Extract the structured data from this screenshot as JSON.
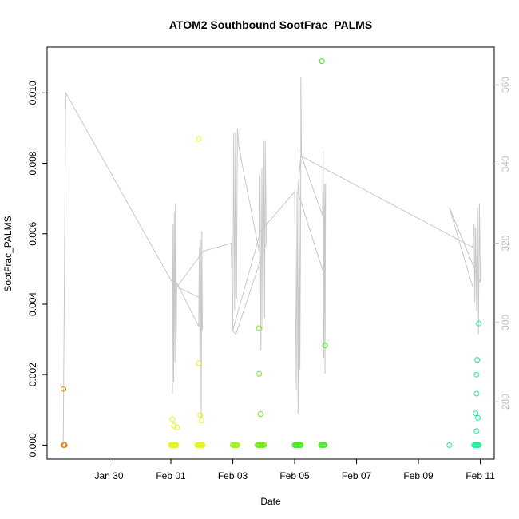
{
  "chart_data": {
    "type": "scatter",
    "title": "ATOM2 Southbound SootFrac_PALMS",
    "xlabel": "Date",
    "ylabel": "SootFrac_PALMS",
    "x_ticks": [
      "Jan 30",
      "Feb 01",
      "Feb 03",
      "Feb 05",
      "Feb 07",
      "Feb 09",
      "Feb 11"
    ],
    "x_tick_days": [
      30,
      32,
      34,
      36,
      38,
      40,
      42
    ],
    "xlim_days": [
      28.0,
      42.45
    ],
    "y_ticks": [
      "0.000",
      "0.002",
      "0.004",
      "0.006",
      "0.008",
      "0.010"
    ],
    "ylim": [
      -0.0004,
      0.0113
    ],
    "y2_ticks": [
      "280",
      "300",
      "320",
      "340",
      "360"
    ],
    "y2lim": [
      265.5,
      369.5
    ],
    "grid": false,
    "scatter_series": [
      {
        "color": "#E88A0C",
        "points": [
          [
            28.53,
            0.00159
          ],
          [
            28.53,
            0.0
          ],
          [
            28.55,
            0.0
          ],
          [
            28.57,
            0.0
          ]
        ]
      },
      {
        "color": "#E6F01A",
        "points": [
          [
            32.05,
            0.00073
          ],
          [
            32.1,
            0.00055
          ],
          [
            32.2,
            0.0005
          ],
          [
            32.9,
            0.0087
          ],
          [
            32.9,
            0.00232
          ],
          [
            32.95,
            0.00085
          ],
          [
            33.0,
            0.0007
          ],
          [
            32.0,
            0.0
          ],
          [
            32.03,
            0.0
          ],
          [
            32.06,
            0.0
          ],
          [
            32.09,
            0.0
          ],
          [
            32.12,
            0.0
          ],
          [
            32.15,
            0.0
          ],
          [
            32.18,
            0.0
          ],
          [
            32.85,
            0.0
          ],
          [
            32.88,
            0.0
          ],
          [
            32.91,
            0.0
          ],
          [
            32.94,
            0.0
          ],
          [
            32.97,
            0.0
          ],
          [
            33.0,
            0.0
          ],
          [
            33.03,
            0.0
          ]
        ]
      },
      {
        "color": "#9AF01A",
        "points": [
          [
            34.0,
            0.0
          ],
          [
            34.03,
            0.0
          ],
          [
            34.06,
            0.0
          ],
          [
            34.09,
            0.0
          ],
          [
            34.12,
            0.0
          ],
          [
            34.15,
            0.0
          ]
        ]
      },
      {
        "color": "#6EEC1A",
        "points": [
          [
            34.85,
            0.00332
          ],
          [
            34.85,
            0.00202
          ],
          [
            34.9,
            0.00088
          ],
          [
            34.8,
            0.0
          ],
          [
            34.83,
            0.0
          ],
          [
            34.86,
            0.0
          ],
          [
            34.89,
            0.0
          ],
          [
            34.92,
            0.0
          ],
          [
            34.95,
            0.0
          ],
          [
            34.98,
            0.0
          ],
          [
            35.01,
            0.0
          ]
        ]
      },
      {
        "color": "#3EEC1A",
        "points": [
          [
            36.0,
            0.0
          ],
          [
            36.03,
            0.0
          ],
          [
            36.06,
            0.0
          ],
          [
            36.09,
            0.0
          ],
          [
            36.12,
            0.0
          ],
          [
            36.15,
            0.0
          ],
          [
            36.18,
            0.0
          ],
          [
            36.2,
            0.0
          ],
          [
            36.88,
            0.0109
          ],
          [
            36.98,
            0.00283
          ],
          [
            36.85,
            0.0
          ],
          [
            36.88,
            0.0
          ],
          [
            36.91,
            0.0
          ],
          [
            36.94,
            0.0
          ],
          [
            36.97,
            0.0
          ]
        ]
      },
      {
        "color": "#1AEC98",
        "points": [
          [
            41.0,
            0.0
          ],
          [
            41.8,
            0.0
          ],
          [
            41.83,
            0.0
          ],
          [
            41.86,
            0.0
          ],
          [
            41.89,
            0.0
          ],
          [
            41.92,
            0.0
          ],
          [
            41.95,
            0.0
          ],
          [
            41.95,
            0.00345
          ],
          [
            41.9,
            0.00242
          ],
          [
            41.88,
            0.002
          ],
          [
            41.88,
            0.00146
          ],
          [
            41.85,
            0.0009
          ],
          [
            41.92,
            0.00077
          ],
          [
            41.88,
            0.0004
          ]
        ]
      }
    ],
    "line_series": {
      "color": "#c8c8c8",
      "axis": "right",
      "points": [
        [
          28.52,
          269
        ],
        [
          28.6,
          358
        ],
        [
          32.05,
          310
        ],
        [
          32.05,
          282
        ],
        [
          32.07,
          325
        ],
        [
          32.09,
          285
        ],
        [
          32.11,
          328
        ],
        [
          32.13,
          290
        ],
        [
          32.15,
          330
        ],
        [
          32.17,
          295
        ],
        [
          32.19,
          310
        ],
        [
          32.9,
          299
        ],
        [
          32.92,
          319
        ],
        [
          32.94,
          290
        ],
        [
          32.96,
          321
        ],
        [
          32.98,
          276
        ],
        [
          33.0,
          323
        ],
        [
          33.02,
          298
        ],
        [
          33.0,
          306
        ],
        [
          32.2,
          309
        ],
        [
          33.05,
          318
        ],
        [
          33.95,
          320
        ],
        [
          34.0,
          298
        ],
        [
          34.03,
          348
        ],
        [
          34.06,
          303
        ],
        [
          34.09,
          348
        ],
        [
          34.12,
          306
        ],
        [
          34.15,
          349
        ],
        [
          34.2,
          344
        ],
        [
          34.85,
          318
        ],
        [
          34.88,
          337
        ],
        [
          34.91,
          293
        ],
        [
          34.94,
          339
        ],
        [
          34.97,
          298
        ],
        [
          35.0,
          346
        ],
        [
          35.03,
          301
        ],
        [
          35.05,
          346
        ],
        [
          35.08,
          320
        ],
        [
          34.1,
          297
        ],
        [
          34.0,
          298
        ],
        [
          34.9,
          323
        ],
        [
          36.0,
          333
        ],
        [
          36.05,
          283
        ],
        [
          36.08,
          333
        ],
        [
          36.11,
          277
        ],
        [
          36.14,
          344
        ],
        [
          36.17,
          288
        ],
        [
          36.2,
          341
        ],
        [
          36.2,
          362
        ],
        [
          36.22,
          342
        ],
        [
          36.9,
          327
        ],
        [
          36.92,
          343
        ],
        [
          36.94,
          291
        ],
        [
          36.96,
          335
        ],
        [
          36.98,
          287
        ],
        [
          37.0,
          335
        ],
        [
          36.95,
          312
        ],
        [
          36.1,
          333
        ],
        [
          36.2,
          342
        ],
        [
          41.75,
          319
        ],
        [
          41.8,
          325
        ],
        [
          41.82,
          305
        ],
        [
          41.85,
          324
        ],
        [
          41.88,
          303
        ],
        [
          41.91,
          329
        ],
        [
          41.94,
          297
        ],
        [
          41.97,
          330
        ],
        [
          42.0,
          310
        ],
        [
          41.0,
          329
        ],
        [
          41.75,
          309
        ]
      ]
    }
  }
}
